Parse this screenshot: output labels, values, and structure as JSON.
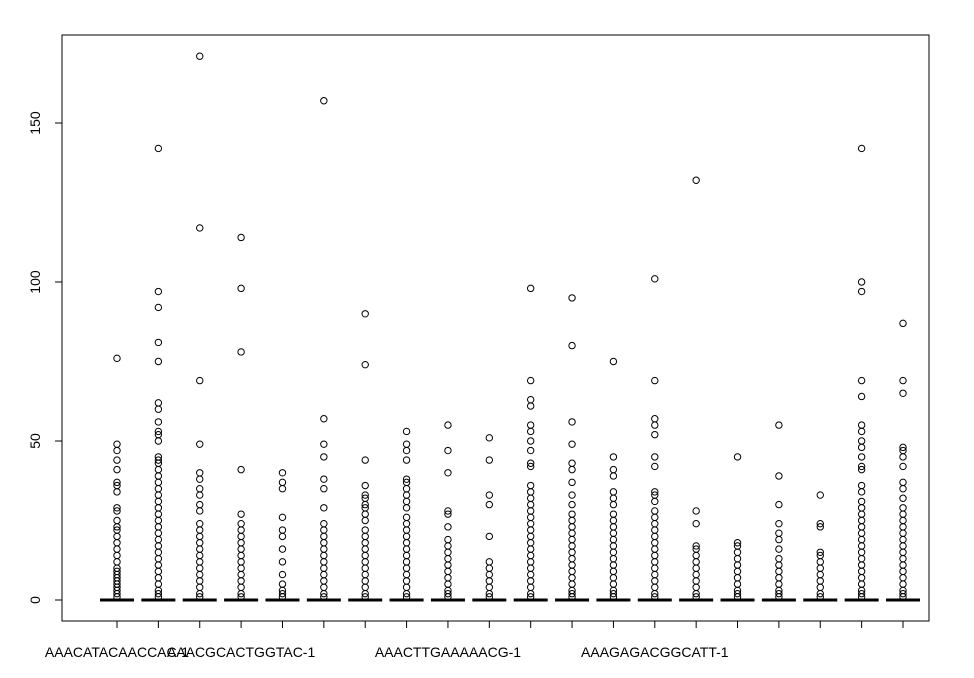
{
  "chart_data": {
    "type": "boxplot",
    "title": "",
    "xlabel": "",
    "ylabel": "",
    "ylim": [
      -4,
      176
    ],
    "yticks": [
      0,
      50,
      100,
      150
    ],
    "ytick_labels": [
      "0",
      "50",
      "100",
      "150"
    ],
    "x_tick_labels": [
      {
        "index": 1,
        "label": "AAACATACAACCAC-1"
      },
      {
        "index": 4,
        "label": "AAACGCACTGGTAC-1"
      },
      {
        "index": 9,
        "label": "AAACTTGAAAAACG-1"
      },
      {
        "index": 14,
        "label": "AAAGAGACGGCATT-1"
      }
    ],
    "series": [
      {
        "name": "box-1",
        "median": 0,
        "outliers": [
          76,
          49,
          47,
          44,
          41,
          37,
          36,
          34,
          29,
          28,
          25,
          23,
          22,
          20,
          18,
          16,
          14,
          12,
          10,
          9,
          8,
          7,
          6,
          5,
          4,
          3,
          2,
          1
        ]
      },
      {
        "name": "box-2",
        "median": 0,
        "outliers": [
          142,
          97,
          92,
          81,
          75,
          62,
          60,
          56,
          53,
          52,
          50,
          45,
          44,
          43,
          41,
          39,
          37,
          35,
          33,
          31,
          29,
          27,
          25,
          23,
          21,
          19,
          17,
          15,
          13,
          11,
          9,
          7,
          5,
          3,
          2,
          1
        ]
      },
      {
        "name": "box-3",
        "median": 0,
        "outliers": [
          171,
          117,
          69,
          49,
          40,
          38,
          35,
          33,
          30,
          28,
          24,
          22,
          20,
          18,
          16,
          14,
          12,
          10,
          8,
          6,
          4,
          2,
          1
        ]
      },
      {
        "name": "box-4",
        "median": 0,
        "outliers": [
          114,
          98,
          78,
          41,
          27,
          24,
          22,
          20,
          18,
          16,
          14,
          12,
          10,
          8,
          6,
          4,
          2,
          1
        ]
      },
      {
        "name": "box-5",
        "median": 0,
        "outliers": [
          40,
          37,
          35,
          26,
          22,
          20,
          16,
          12,
          8,
          5,
          3,
          2,
          1
        ]
      },
      {
        "name": "box-6",
        "median": 0,
        "outliers": [
          157,
          57,
          49,
          45,
          38,
          35,
          29,
          24,
          22,
          20,
          18,
          16,
          14,
          12,
          10,
          8,
          6,
          4,
          2,
          1
        ]
      },
      {
        "name": "box-7",
        "median": 0,
        "outliers": [
          90,
          74,
          44,
          36,
          33,
          32,
          30,
          29,
          27,
          25,
          22,
          20,
          18,
          16,
          14,
          12,
          10,
          8,
          6,
          4,
          2,
          1
        ]
      },
      {
        "name": "box-8",
        "median": 0,
        "outliers": [
          53,
          49,
          47,
          44,
          38,
          37,
          35,
          33,
          31,
          29,
          26,
          24,
          22,
          20,
          18,
          16,
          14,
          12,
          10,
          8,
          6,
          4,
          2,
          1
        ]
      },
      {
        "name": "box-9",
        "median": 0,
        "outliers": [
          55,
          47,
          40,
          28,
          27,
          23,
          19,
          17,
          15,
          13,
          11,
          9,
          7,
          5,
          3,
          2,
          1
        ]
      },
      {
        "name": "box-10",
        "median": 0,
        "outliers": [
          51,
          44,
          33,
          30,
          20,
          12,
          10,
          8,
          6,
          4,
          2,
          1
        ]
      },
      {
        "name": "box-11",
        "median": 0,
        "outliers": [
          98,
          69,
          63,
          61,
          55,
          53,
          50,
          47,
          43,
          42,
          36,
          34,
          32,
          30,
          28,
          26,
          24,
          22,
          20,
          18,
          16,
          14,
          12,
          10,
          8,
          6,
          4,
          2,
          1
        ]
      },
      {
        "name": "box-12",
        "median": 0,
        "outliers": [
          95,
          80,
          56,
          49,
          43,
          41,
          37,
          33,
          30,
          27,
          25,
          23,
          21,
          19,
          17,
          15,
          13,
          11,
          9,
          7,
          5,
          3,
          2,
          1
        ]
      },
      {
        "name": "box-13",
        "median": 0,
        "outliers": [
          75,
          45,
          41,
          39,
          34,
          32,
          30,
          27,
          25,
          23,
          21,
          19,
          17,
          15,
          13,
          11,
          9,
          7,
          5,
          3,
          2,
          1
        ]
      },
      {
        "name": "box-14",
        "median": 0,
        "outliers": [
          101,
          69,
          57,
          55,
          52,
          45,
          42,
          34,
          33,
          31,
          28,
          26,
          24,
          22,
          20,
          18,
          16,
          14,
          12,
          10,
          8,
          6,
          4,
          2,
          1
        ]
      },
      {
        "name": "box-15",
        "median": 0,
        "outliers": [
          132,
          28,
          24,
          17,
          16,
          14,
          12,
          10,
          8,
          6,
          4,
          2,
          1
        ]
      },
      {
        "name": "box-16",
        "median": 0,
        "outliers": [
          45,
          18,
          17,
          15,
          13,
          11,
          9,
          7,
          5,
          3,
          2,
          1
        ]
      },
      {
        "name": "box-17",
        "median": 0,
        "outliers": [
          55,
          39,
          30,
          24,
          21,
          19,
          16,
          13,
          11,
          9,
          7,
          5,
          3,
          2,
          1
        ]
      },
      {
        "name": "box-18",
        "median": 0,
        "outliers": [
          33,
          24,
          23,
          15,
          14,
          12,
          10,
          8,
          6,
          4,
          2,
          1
        ]
      },
      {
        "name": "box-19",
        "median": 0,
        "outliers": [
          142,
          100,
          97,
          69,
          64,
          55,
          53,
          50,
          48,
          45,
          42,
          41,
          36,
          34,
          31,
          29,
          27,
          25,
          23,
          21,
          19,
          17,
          15,
          13,
          11,
          9,
          7,
          5,
          3,
          2,
          1
        ]
      },
      {
        "name": "box-20",
        "median": 0,
        "outliers": [
          87,
          69,
          65,
          48,
          47,
          45,
          42,
          37,
          35,
          32,
          29,
          27,
          25,
          23,
          21,
          19,
          17,
          15,
          13,
          11,
          9,
          7,
          5,
          3,
          2,
          1
        ]
      }
    ]
  }
}
